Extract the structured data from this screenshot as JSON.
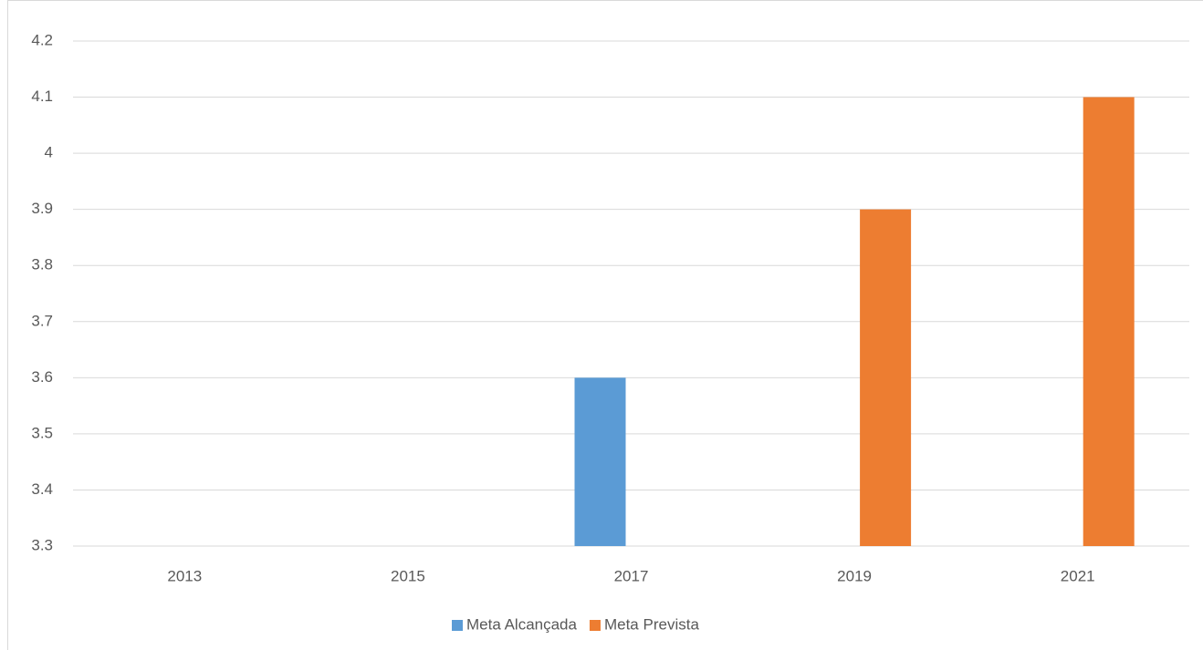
{
  "chart_data": {
    "type": "bar",
    "categories": [
      "2013",
      "2015",
      "2017",
      "2019",
      "2021"
    ],
    "series": [
      {
        "name": "Meta Alcançada",
        "color": "#5b9bd5",
        "values": [
          null,
          null,
          3.6,
          null,
          null
        ]
      },
      {
        "name": "Meta Prevista",
        "color": "#ed7d31",
        "values": [
          null,
          null,
          null,
          3.9,
          4.1
        ]
      }
    ],
    "ylim": [
      3.3,
      4.2
    ],
    "yticks": [
      3.3,
      3.4,
      3.5,
      3.6,
      3.7,
      3.8,
      3.9,
      4,
      4.1,
      4.2
    ],
    "grid": true,
    "legend": "bottom"
  }
}
